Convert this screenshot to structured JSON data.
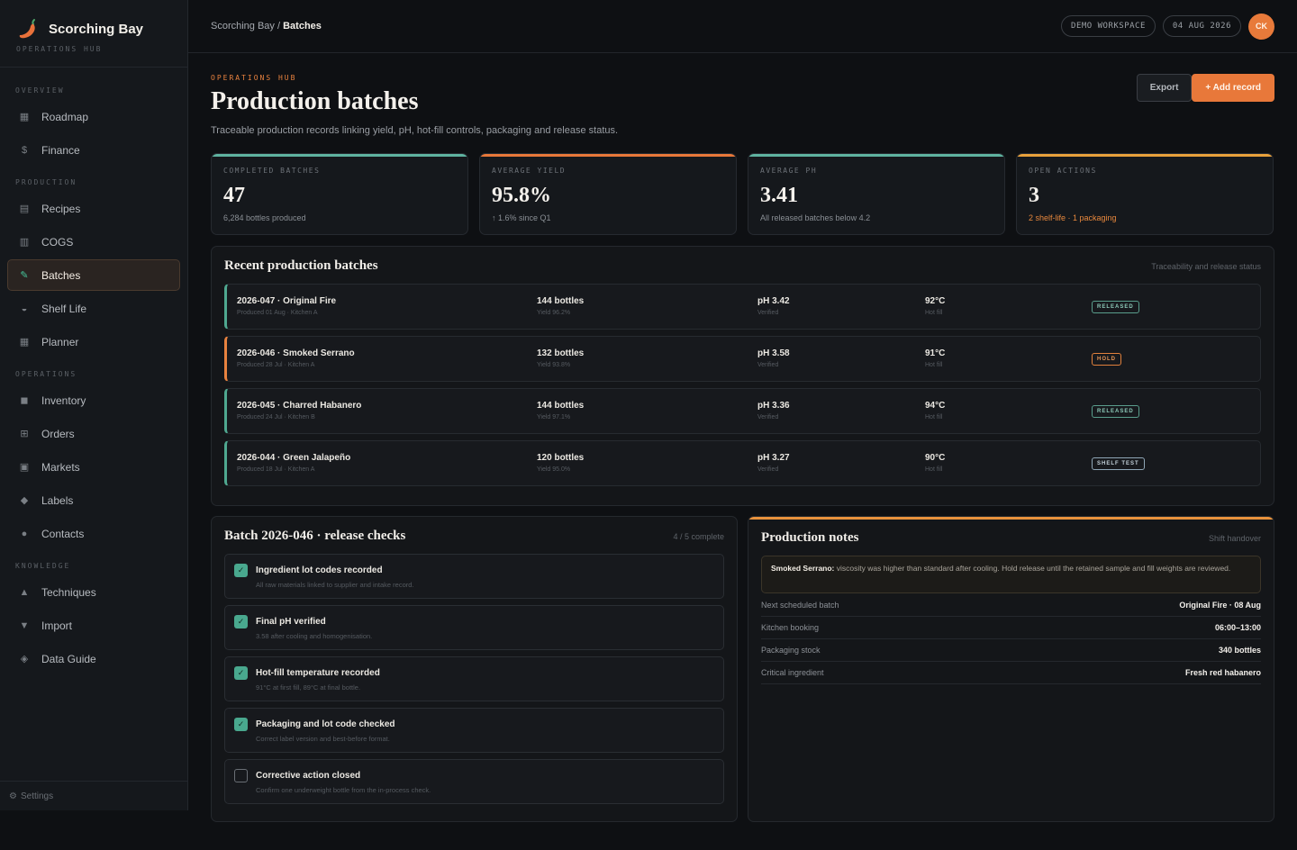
{
  "brand": {
    "name": "Scorching Bay",
    "subtitle": "OPERATIONS HUB"
  },
  "sidebar": {
    "sections": [
      {
        "label": "OVERVIEW",
        "items": [
          {
            "label": "Roadmap",
            "icon": "map-icon",
            "glyph": "▦"
          },
          {
            "label": "Finance",
            "icon": "money-bag-icon",
            "glyph": "$"
          }
        ]
      },
      {
        "label": "PRODUCTION",
        "items": [
          {
            "label": "Recipes",
            "icon": "book-icon",
            "glyph": "▤"
          },
          {
            "label": "COGS",
            "icon": "ledger-icon",
            "glyph": "▥"
          },
          {
            "label": "Batches",
            "icon": "pencil-icon",
            "glyph": "✎",
            "active": true
          },
          {
            "label": "Shelf Life",
            "icon": "bell-icon",
            "glyph": "◒"
          },
          {
            "label": "Planner",
            "icon": "calendar-icon",
            "glyph": "▦"
          }
        ]
      },
      {
        "label": "OPERATIONS",
        "items": [
          {
            "label": "Inventory",
            "icon": "box-icon",
            "glyph": "◼"
          },
          {
            "label": "Orders",
            "icon": "cart-icon",
            "glyph": "⊞"
          },
          {
            "label": "Markets",
            "icon": "store-icon",
            "glyph": "▣"
          },
          {
            "label": "Labels",
            "icon": "tag-icon",
            "glyph": "◆"
          },
          {
            "label": "Contacts",
            "icon": "people-icon",
            "glyph": "●"
          }
        ]
      },
      {
        "label": "KNOWLEDGE",
        "items": [
          {
            "label": "Techniques",
            "icon": "flame-icon",
            "glyph": "▲"
          },
          {
            "label": "Import",
            "icon": "import-icon",
            "glyph": "▼"
          },
          {
            "label": "Data Guide",
            "icon": "shield-icon",
            "glyph": "◈"
          }
        ]
      }
    ],
    "footer": {
      "label": "Settings",
      "icon": "gear-icon"
    }
  },
  "topbar": {
    "breadcrumb_parent": "Scorching Bay",
    "breadcrumb_sep": " / ",
    "breadcrumb_current": "Batches",
    "workspace": "DEMO WORKSPACE",
    "date": "04 AUG 2026",
    "avatar": "CK"
  },
  "header": {
    "eyebrow": "OPERATIONS HUB",
    "title": "Production batches",
    "subtitle": "Traceable production records linking yield, pH, hot-fill controls, packaging and release status.",
    "export_label": "Export",
    "add_label": "+ Add record"
  },
  "stats": [
    {
      "label": "COMPLETED BATCHES",
      "value": "47",
      "note": "6,284 bottles produced",
      "accent": "#5fb3a0",
      "warn": false
    },
    {
      "label": "AVERAGE YIELD",
      "value": "95.8%",
      "note": "↑ 1.6% since Q1",
      "accent": "#e8783a",
      "warn": false
    },
    {
      "label": "AVERAGE PH",
      "value": "3.41",
      "note": "All released batches below 4.2",
      "accent": "#5fb3a0",
      "warn": false
    },
    {
      "label": "OPEN ACTIONS",
      "value": "3",
      "note": "2 shelf-life · 1 packaging",
      "accent": "#e8a13c",
      "warn": true
    }
  ],
  "batches": {
    "title": "Recent production batches",
    "meta": "Traceability and release status",
    "rows": [
      {
        "name": "2026-047 · Original Fire",
        "produced": "Produced 01 Aug · Kitchen A",
        "bottles": "144 bottles",
        "yield": "Yield 96.2%",
        "ph": "pH 3.42",
        "ph_note": "Verified",
        "temp": "92°C",
        "temp_note": "Hot fill",
        "status": "RELEASED",
        "kind": "released"
      },
      {
        "name": "2026-046 · Smoked Serrano",
        "produced": "Produced 28 Jul · Kitchen A",
        "bottles": "132 bottles",
        "yield": "Yield 93.8%",
        "ph": "pH 3.58",
        "ph_note": "Verified",
        "temp": "91°C",
        "temp_note": "Hot fill",
        "status": "HOLD",
        "kind": "hold"
      },
      {
        "name": "2026-045 · Charred Habanero",
        "produced": "Produced 24 Jul · Kitchen B",
        "bottles": "144 bottles",
        "yield": "Yield 97.1%",
        "ph": "pH 3.36",
        "ph_note": "Verified",
        "temp": "94°C",
        "temp_note": "Hot fill",
        "status": "RELEASED",
        "kind": "released"
      },
      {
        "name": "2026-044 · Green Jalapeño",
        "produced": "Produced 18 Jul · Kitchen A",
        "bottles": "120 bottles",
        "yield": "Yield 95.0%",
        "ph": "pH 3.27",
        "ph_note": "Verified",
        "temp": "90°C",
        "temp_note": "Hot fill",
        "status": "SHELF TEST",
        "kind": "shelf"
      }
    ]
  },
  "checks": {
    "title": "Batch 2026-046 · release checks",
    "meta": "4 / 5 complete",
    "items": [
      {
        "label": "Ingredient lot codes recorded",
        "detail": "All raw materials linked to supplier and intake record.",
        "done": true
      },
      {
        "label": "Final pH verified",
        "detail": "3.58 after cooling and homogenisation.",
        "done": true
      },
      {
        "label": "Hot-fill temperature recorded",
        "detail": "91°C at first fill, 89°C at final bottle.",
        "done": true
      },
      {
        "label": "Packaging and lot code checked",
        "detail": "Correct label version and best-before format.",
        "done": true
      },
      {
        "label": "Corrective action closed",
        "detail": "Confirm one underweight bottle from the in-process check.",
        "done": false
      }
    ]
  },
  "notes": {
    "title": "Production notes",
    "meta": "Shift handover",
    "callout_lead": "Smoked Serrano:",
    "callout_text": " viscosity was higher than standard after cooling. Hold release until the retained sample and fill weights are reviewed.",
    "facts": [
      {
        "key": "Next scheduled batch",
        "value": "Original Fire · 08 Aug"
      },
      {
        "key": "Kitchen booking",
        "value": "06:00–13:00"
      },
      {
        "key": "Packaging stock",
        "value": "340 bottles"
      },
      {
        "key": "Critical ingredient",
        "value": "Fresh red habanero"
      }
    ]
  }
}
